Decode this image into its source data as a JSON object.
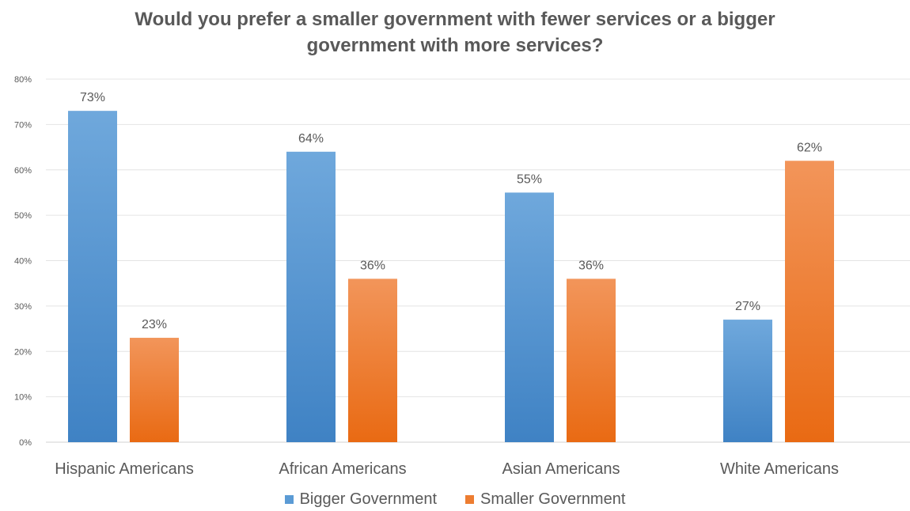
{
  "chart_data": {
    "type": "bar",
    "title_lines": [
      "Would you prefer a smaller government with fewer services or a bigger",
      "government with more services?"
    ],
    "categories": [
      "Hispanic Americans",
      "African Americans",
      "Asian Americans",
      "White Americans"
    ],
    "series": [
      {
        "name": "Bigger Government",
        "values": [
          73,
          64,
          55,
          27
        ],
        "labels": [
          "73%",
          "64%",
          "55%",
          "27%"
        ],
        "color": "#5B9BD5"
      },
      {
        "name": "Smaller Government",
        "values": [
          23,
          36,
          36,
          62
        ],
        "labels": [
          "23%",
          "36%",
          "36%",
          "62%"
        ],
        "color": "#ED7D31"
      }
    ],
    "ylim": [
      0,
      80
    ],
    "yticks": [
      0,
      10,
      20,
      30,
      40,
      50,
      60,
      70,
      80
    ],
    "ytick_labels": [
      "0%",
      "10%",
      "20%",
      "30%",
      "40%",
      "50%",
      "60%",
      "70%",
      "80%"
    ],
    "grid": true,
    "legend_position": "bottom"
  }
}
